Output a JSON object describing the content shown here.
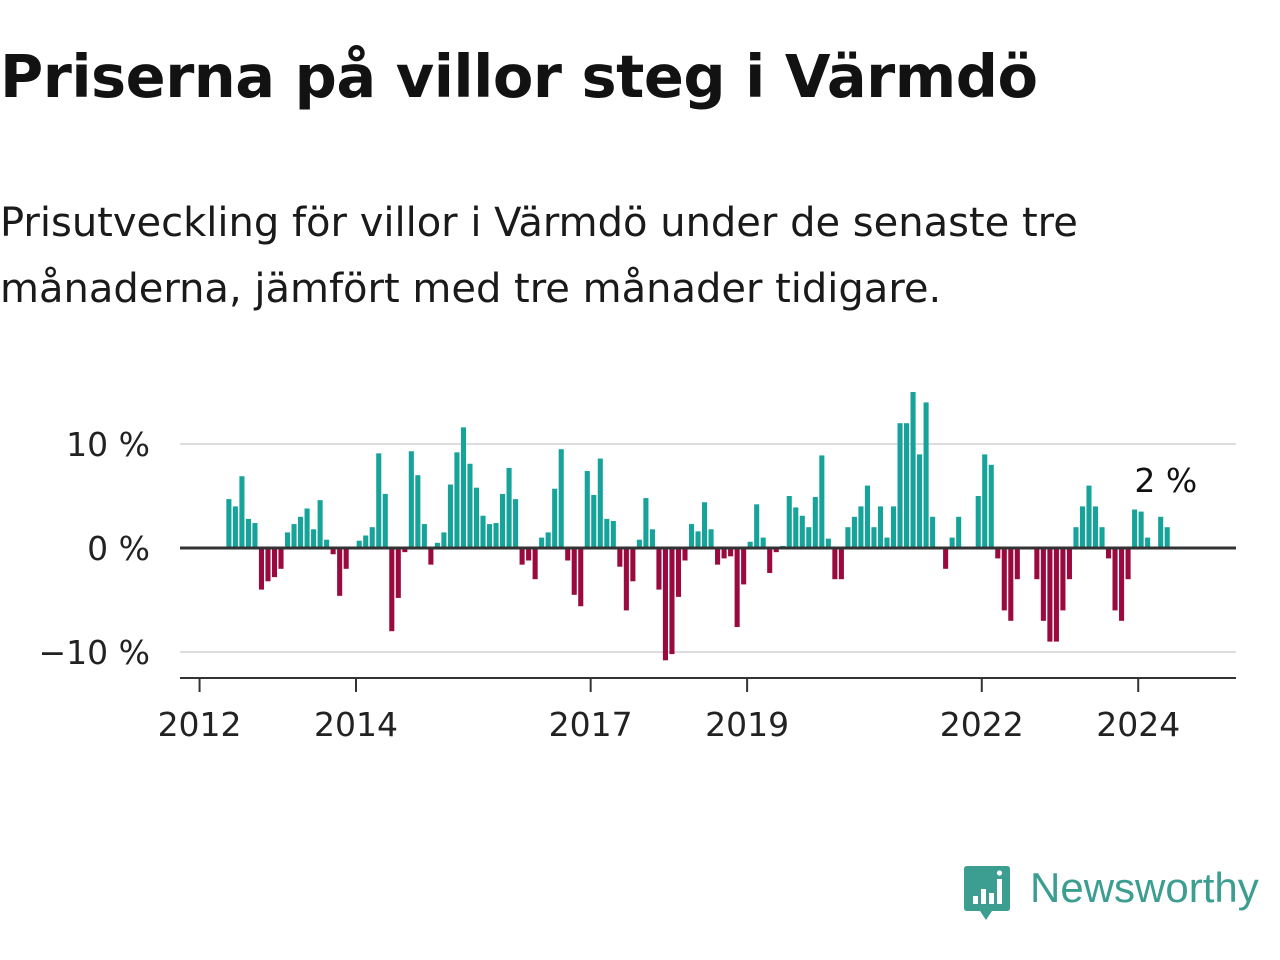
{
  "title": "Priserna på villor steg i Värmdö",
  "subtitle": "Prisutveckling för villor i Värmdö under de senaste tre månaderna, jämfört med tre månader tidigare.",
  "brand": {
    "name": "Newsworthy"
  },
  "colors": {
    "positive": "#16a39a",
    "negative": "#9b0a3e",
    "axis": "#333333",
    "grid": "#dddddd"
  },
  "chart_data": {
    "type": "bar",
    "title": "Priserna på villor steg i Värmdö",
    "xlabel": "",
    "ylabel": "",
    "ylim": [
      -12.5,
      16.5
    ],
    "grid": true,
    "y_ticks": [
      {
        "value": 10,
        "label": "10 %"
      },
      {
        "value": 0,
        "label": "0 %"
      },
      {
        "value": -10,
        "label": "−10 %"
      }
    ],
    "x_ticks": [
      {
        "value": 2012,
        "label": "2012"
      },
      {
        "value": 2014,
        "label": "2014"
      },
      {
        "value": 2017,
        "label": "2017"
      },
      {
        "value": 2019,
        "label": "2019"
      },
      {
        "value": 2022,
        "label": "2022"
      },
      {
        "value": 2024,
        "label": "2024"
      }
    ],
    "x_start": 2012.375,
    "x_step": 0.0833,
    "values": [
      4.7,
      4,
      6.9,
      2.8,
      2.4,
      -4,
      -3.2,
      -2.8,
      -2,
      1.5,
      2.3,
      3,
      3.8,
      1.8,
      4.6,
      0.8,
      -0.6,
      -4.6,
      -2,
      0,
      0.7,
      1.2,
      2,
      9.1,
      5.2,
      -8,
      -4.8,
      -0.4,
      9.3,
      7,
      2.3,
      -1.6,
      0.5,
      1.5,
      6.1,
      9.2,
      11.6,
      8.1,
      5.8,
      3.1,
      2.3,
      2.4,
      5.2,
      7.7,
      4.7,
      -1.6,
      -1.2,
      -3,
      1,
      1.5,
      5.7,
      9.5,
      -1.2,
      -4.5,
      -5.6,
      7.4,
      5.1,
      8.6,
      2.8,
      2.6,
      -1.8,
      -6,
      -3.2,
      0.8,
      4.8,
      1.8,
      -4,
      -10.8,
      -10.2,
      -4.7,
      -1.2,
      2.3,
      1.6,
      4.4,
      1.8,
      -1.6,
      -1,
      -0.8,
      -7.6,
      -3.5,
      0.6,
      4.2,
      1,
      -2.4,
      -0.4,
      0.2,
      5,
      3.9,
      3.1,
      2,
      4.9,
      8.9,
      0.9,
      -3,
      -3,
      2,
      3,
      4,
      6,
      2,
      4,
      1,
      4,
      12,
      12,
      15,
      9,
      14,
      3,
      0,
      -2,
      1,
      3,
      0,
      0,
      5,
      9,
      8,
      -1,
      -6,
      -7,
      -3,
      0,
      0,
      -3,
      -7,
      -9,
      -9,
      -6,
      -3,
      2,
      4,
      6,
      4,
      2,
      -1,
      -6,
      -7,
      -3,
      3.7,
      3.5,
      1,
      0,
      3,
      2
    ],
    "annotations": [
      {
        "text": "2 %",
        "target": "last"
      }
    ]
  }
}
